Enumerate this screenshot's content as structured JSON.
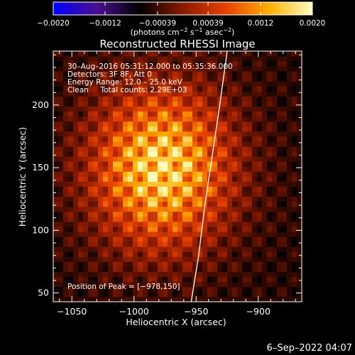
{
  "chart_data": {
    "type": "heatmap",
    "title": "Reconstructed RHESSI Image",
    "xlabel": "Heliocentric X (arcsec)",
    "ylabel": "Heliocentric Y (arcsec)",
    "xlim": [
      -1065,
      -865
    ],
    "ylim": [
      43,
      243
    ],
    "x_ticks": [
      -1050,
      -1000,
      -950,
      -900
    ],
    "x_tick_labels": [
      "−1050",
      "−1000",
      "−950",
      "−900"
    ],
    "y_ticks": [
      50,
      100,
      150,
      200
    ],
    "y_tick_labels": [
      "50",
      "100",
      "150",
      "200"
    ],
    "colorbar": {
      "range": [
        -0.002,
        0.002
      ],
      "ticks": [
        -0.002,
        -0.0012,
        -0.00039,
        0.00039,
        0.0012,
        0.002
      ],
      "tick_labels": [
        "−0.0020",
        "−0.0012",
        "−0.00039",
        "0.00039",
        "0.0012",
        "0.0020"
      ],
      "label_parts": [
        "(photons cm",
        "−2",
        " s",
        "−1",
        " asec",
        "−2",
        ")"
      ],
      "colors": [
        "#0000ff",
        "#4b0f92",
        "#000000",
        "#8a1a00",
        "#e84000",
        "#ffb000",
        "#ffffc0"
      ]
    },
    "annotations": [
      "30–Aug–2016 05:31:12.000 to 05:35:36.000",
      "Detectors: 3F 8F, Att 0",
      "Energy Range: 12.0 – 25.0 keV",
      "Clean     Total counts: 2.29E+03"
    ],
    "peak_label": "Position of Peak = [−978,150]",
    "peak": [
      -978,
      150
    ],
    "limb_curve": [
      [
        -954,
        43
      ],
      [
        -948,
        80
      ],
      [
        -943,
        120
      ],
      [
        -937,
        160
      ],
      [
        -931,
        200
      ],
      [
        -925,
        243
      ]
    ],
    "grid": false
  },
  "footer": {
    "date": "6–Sep–2022 04:07"
  }
}
